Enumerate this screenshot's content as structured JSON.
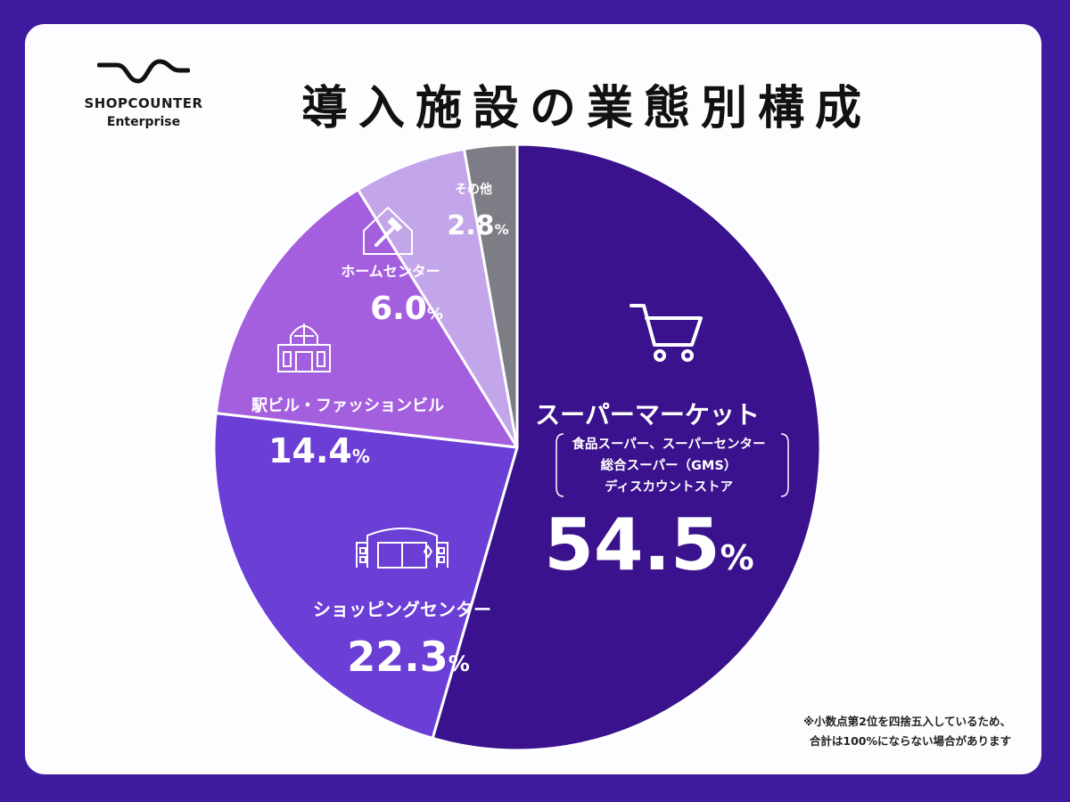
{
  "logo": {
    "name": "SHOPCOUNTER",
    "sub": "Enterprise"
  },
  "title": "導入施設の業態別構成",
  "note": {
    "line1": "※小数点第2位を四捨五入しているため、",
    "line2": "合計は100%にならない場合があります"
  },
  "colors": {
    "frame": "#3d1a9e",
    "supermarket": "#3a128d",
    "shopping_center": "#6b3ed6",
    "station_fashion": "#a45fdf",
    "home_center": "#c3a6ea",
    "other": "#7d7d85"
  },
  "chart_data": {
    "type": "pie",
    "title": "導入施設の業態別構成",
    "unit": "%",
    "slices": [
      {
        "label": "スーパーマーケット",
        "value": 54.5,
        "value_text": "54.5",
        "icon": "shopping-cart-icon",
        "sub_labels": [
          "食品スーパー、スーパーセンター",
          "総合スーパー（GMS）",
          "ディスカウントストア"
        ]
      },
      {
        "label": "ショッピングセンター",
        "value": 22.3,
        "value_text": "22.3",
        "icon": "shopping-center-icon"
      },
      {
        "label": "駅ビル・ファッションビル",
        "value": 14.4,
        "value_text": "14.4",
        "icon": "building-icon"
      },
      {
        "label": "ホームセンター",
        "value": 6.0,
        "value_text": "6.0",
        "icon": "hammer-house-icon"
      },
      {
        "label": "その他",
        "value": 2.8,
        "value_text": "2.8"
      }
    ]
  }
}
